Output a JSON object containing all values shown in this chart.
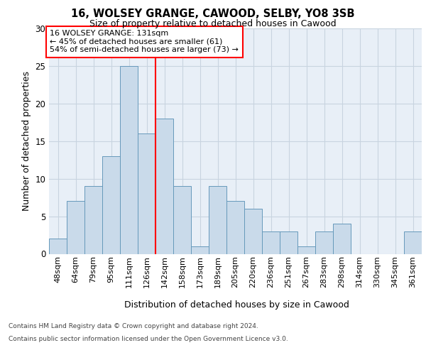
{
  "title1": "16, WOLSEY GRANGE, CAWOOD, SELBY, YO8 3SB",
  "title2": "Size of property relative to detached houses in Cawood",
  "xlabel": "Distribution of detached houses by size in Cawood",
  "ylabel": "Number of detached properties",
  "categories": [
    "48sqm",
    "64sqm",
    "79sqm",
    "95sqm",
    "111sqm",
    "126sqm",
    "142sqm",
    "158sqm",
    "173sqm",
    "189sqm",
    "205sqm",
    "220sqm",
    "236sqm",
    "251sqm",
    "267sqm",
    "283sqm",
    "298sqm",
    "314sqm",
    "330sqm",
    "345sqm",
    "361sqm"
  ],
  "values": [
    2,
    7,
    9,
    13,
    25,
    16,
    18,
    9,
    1,
    9,
    7,
    6,
    3,
    3,
    1,
    3,
    4,
    0,
    0,
    0,
    3
  ],
  "bar_color": "#c9daea",
  "bar_edge_color": "#6699bb",
  "grid_color": "#c8d4e0",
  "red_line_x": 5.5,
  "annotation_text": "16 WOLSEY GRANGE: 131sqm\n← 45% of detached houses are smaller (61)\n54% of semi-detached houses are larger (73) →",
  "annotation_box_color": "white",
  "annotation_box_edge": "red",
  "ylim": [
    0,
    30
  ],
  "yticks": [
    0,
    5,
    10,
    15,
    20,
    25,
    30
  ],
  "background_color": "#e8eff7",
  "footer1": "Contains HM Land Registry data © Crown copyright and database right 2024.",
  "footer2": "Contains public sector information licensed under the Open Government Licence v3.0."
}
